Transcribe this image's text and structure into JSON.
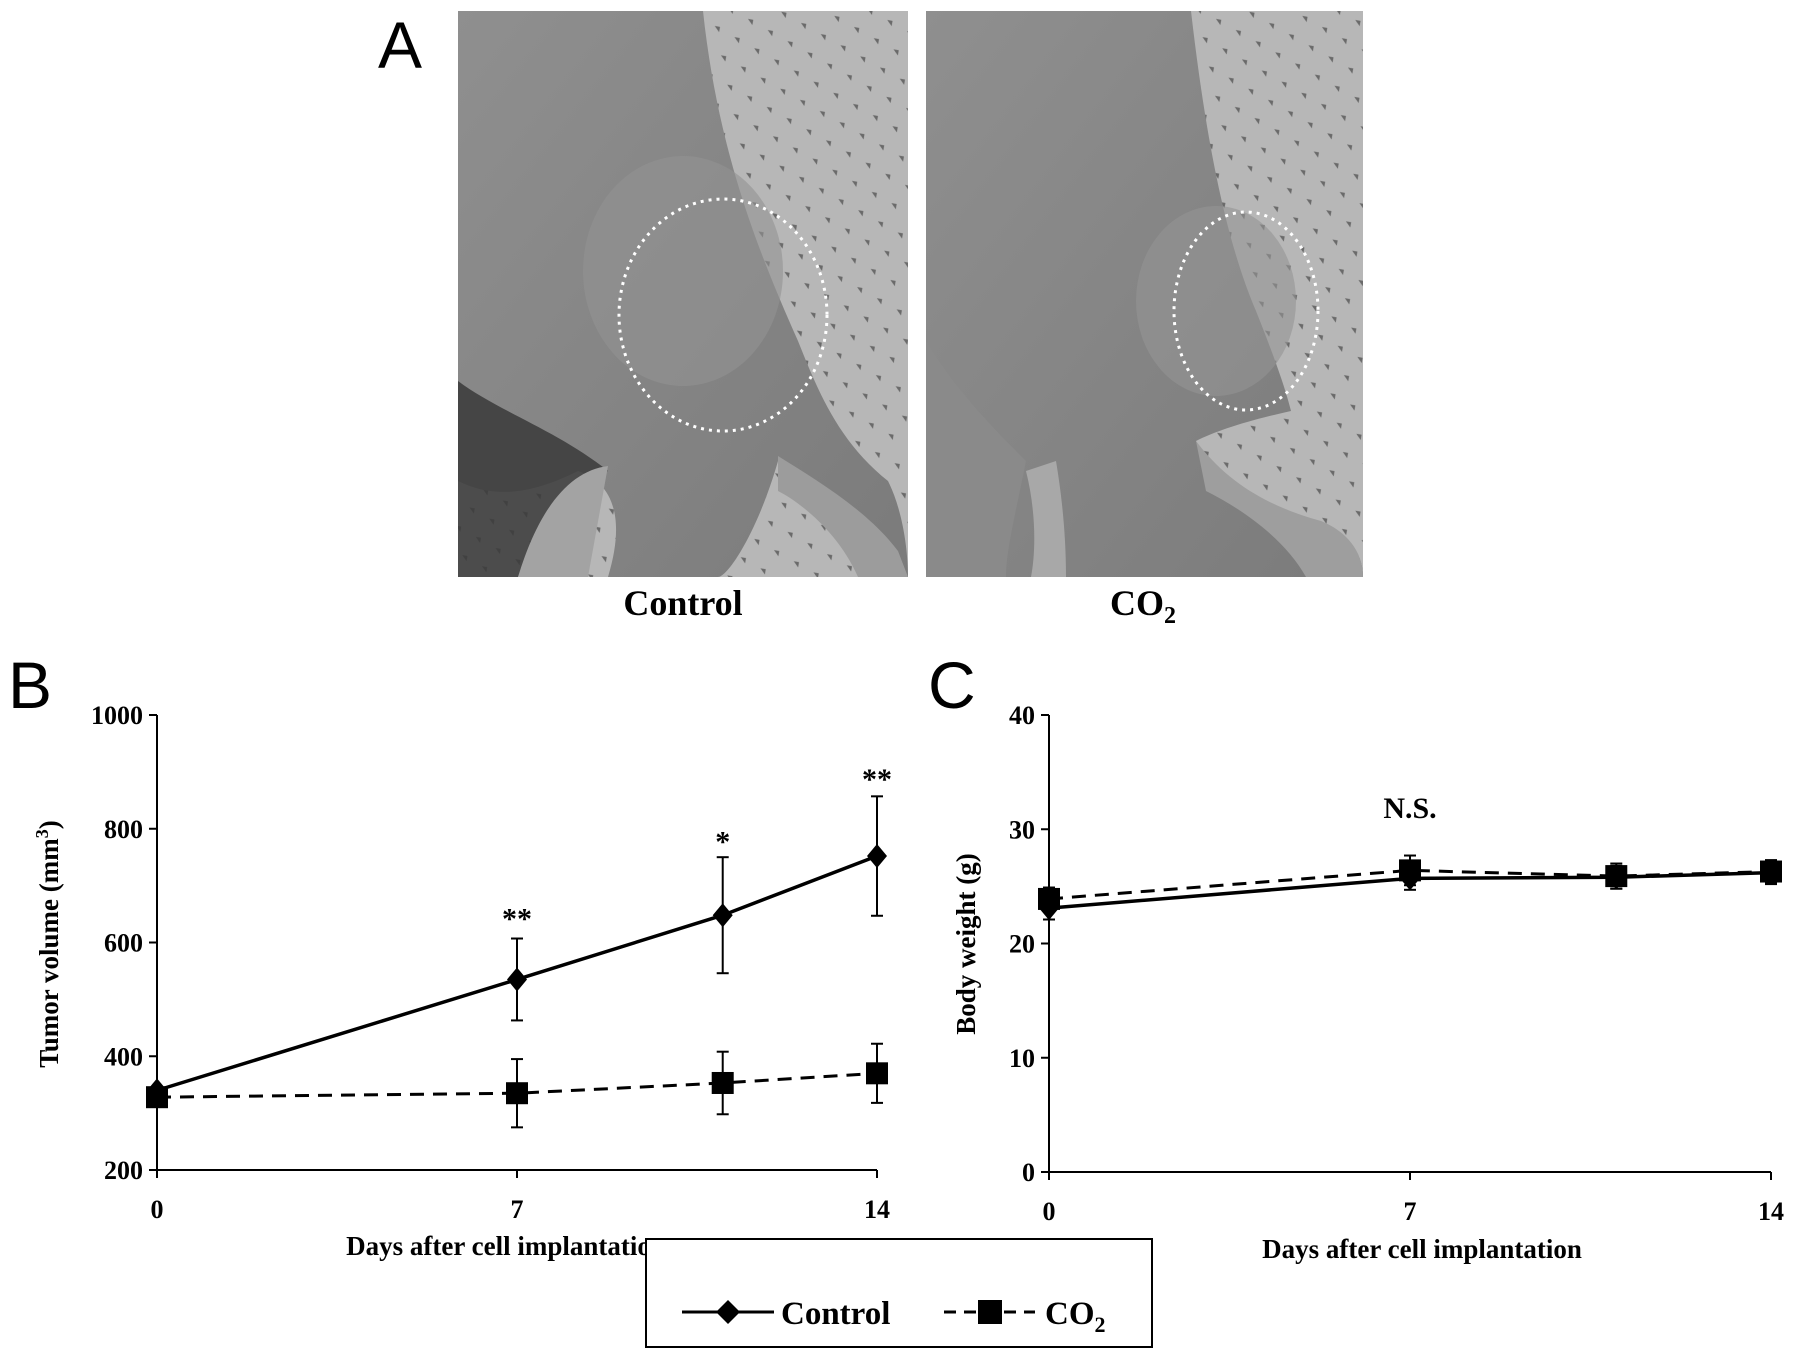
{
  "panel_a": {
    "letter": "A",
    "photos": [
      {
        "caption": "Control"
      },
      {
        "caption": "CO",
        "caption_sub": "2"
      }
    ]
  },
  "legend": {
    "items": [
      {
        "label": "Control",
        "label_sub": "",
        "marker": "diamond",
        "line": "solid"
      },
      {
        "label": "CO",
        "label_sub": "2",
        "marker": "square",
        "line": "dashed"
      }
    ]
  },
  "chart_data": [
    {
      "panel": "B",
      "type": "line",
      "xlabel": "Days after cell implantation",
      "ylabel": "Tumor volume (mm",
      "ylabel_sup": "3",
      "ylabel_end": ")",
      "xlim": [
        0,
        14
      ],
      "ylim": [
        200,
        1000
      ],
      "xticks": [
        0,
        7,
        14
      ],
      "yticks": [
        200,
        400,
        600,
        800,
        1000
      ],
      "grid": false,
      "series": [
        {
          "name": "Control",
          "marker": "diamond",
          "line": "solid",
          "x": [
            0,
            7,
            11,
            14
          ],
          "y": [
            340,
            535,
            648,
            752
          ],
          "err": [
            0,
            72,
            102,
            105
          ]
        },
        {
          "name": "CO2",
          "marker": "square",
          "line": "dashed",
          "x": [
            0,
            7,
            11,
            14
          ],
          "y": [
            328,
            335,
            353,
            370
          ],
          "err": [
            0,
            60,
            55,
            52
          ]
        }
      ],
      "annotations": [
        {
          "text": "**",
          "x": 7,
          "y": 625
        },
        {
          "text": "*",
          "x": 11,
          "y": 760
        },
        {
          "text": "**",
          "x": 14,
          "y": 870
        }
      ]
    },
    {
      "panel": "C",
      "type": "line",
      "xlabel": "Days after cell implantation",
      "ylabel": "Body weight (g)",
      "xlim": [
        0,
        14
      ],
      "ylim": [
        0,
        40
      ],
      "xticks": [
        0,
        7,
        14
      ],
      "yticks": [
        0,
        10,
        20,
        30,
        40
      ],
      "grid": false,
      "series": [
        {
          "name": "Control",
          "marker": "diamond",
          "line": "solid",
          "x": [
            0,
            7,
            11,
            14
          ],
          "y": [
            23.1,
            25.7,
            25.8,
            26.2
          ],
          "err": [
            1.0,
            1.0,
            1.0,
            1.0
          ]
        },
        {
          "name": "CO2",
          "marker": "square",
          "line": "dashed",
          "x": [
            0,
            7,
            11,
            14
          ],
          "y": [
            23.9,
            26.4,
            25.9,
            26.3
          ],
          "err": [
            1.0,
            1.3,
            1.1,
            1.0
          ]
        }
      ],
      "annotations": [
        {
          "text": "N.S.",
          "x": 7,
          "y": 31
        }
      ]
    }
  ]
}
